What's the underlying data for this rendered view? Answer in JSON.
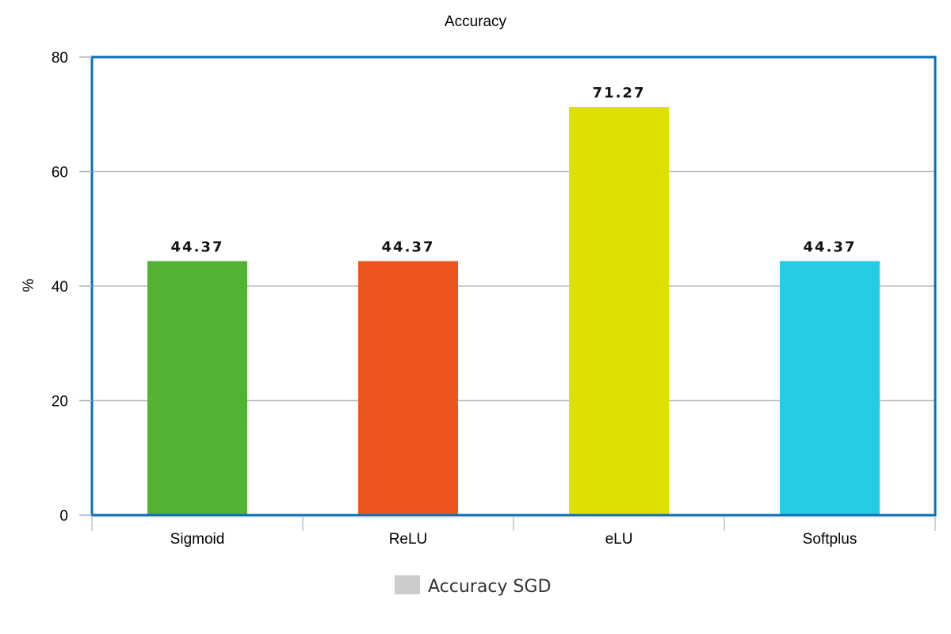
{
  "chart_data": {
    "type": "bar",
    "title": "Accuracy",
    "xlabel": "",
    "ylabel": "%",
    "ylim": [
      0,
      80
    ],
    "yticks": [
      0,
      20,
      40,
      60,
      80
    ],
    "categories": [
      "Sigmoid",
      "ReLU",
      "eLU",
      "Softplus"
    ],
    "series": [
      {
        "name": "Accuracy SGD",
        "values": [
          44.37,
          44.37,
          71.27,
          44.37
        ],
        "data_labels": [
          "44.37",
          "44.37",
          "71.27",
          "44.37"
        ],
        "colors": [
          "#52b233",
          "#ec561c",
          "#dde000",
          "#26cbe6"
        ],
        "legend_color": "#cccccc"
      }
    ],
    "grid": true,
    "legend_position": "bottom-center",
    "frame_color": "#0a6fba"
  }
}
